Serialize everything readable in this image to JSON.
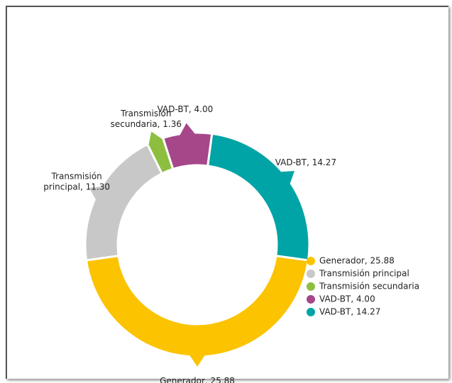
{
  "chart_data": {
    "type": "donut",
    "categories": [
      "Generador, 25.88",
      "Transmisión principal",
      "Transmisión secundaria",
      "VAD-BT, 4.00",
      "VAD-BT, 14.27"
    ],
    "values": [
      25.88,
      11.3,
      1.36,
      4.0,
      14.27
    ],
    "value_labels": [
      "Generador, 25.88",
      "Transmisión\nprincipal, 11.30",
      "Transmisión\nsecundaria, 1.36",
      "VAD-BT, 4.00",
      "VAD-BT, 14.27"
    ],
    "colors": [
      "#fbc300",
      "#c8c8c8",
      "#8dbe3f",
      "#a6478a",
      "#00a4a6"
    ],
    "legend": "bottom-right"
  }
}
